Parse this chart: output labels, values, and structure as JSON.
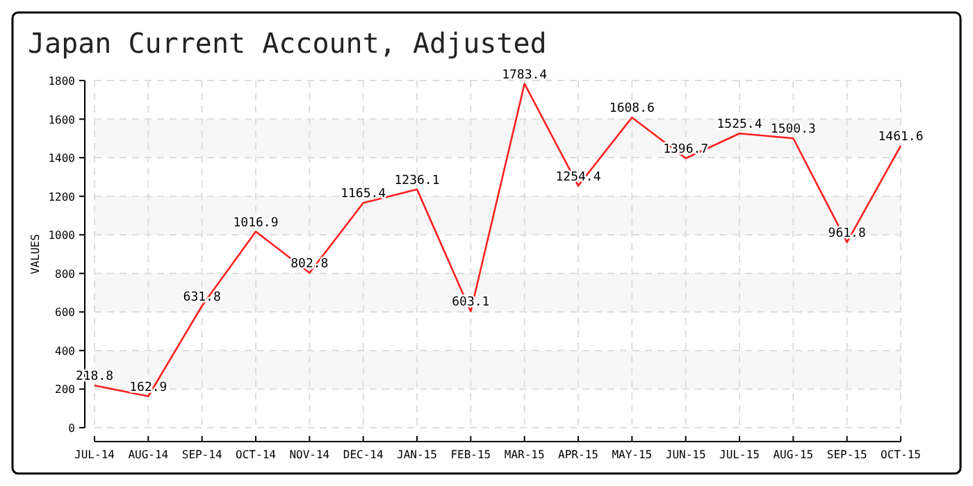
{
  "chart_data": {
    "type": "line",
    "title": "Japan Current Account, Adjusted",
    "ylabel": "VALUES",
    "categories": [
      "JUL-14",
      "AUG-14",
      "SEP-14",
      "OCT-14",
      "NOV-14",
      "DEC-14",
      "JAN-15",
      "FEB-15",
      "MAR-15",
      "APR-15",
      "MAY-15",
      "JUN-15",
      "JUL-15",
      "AUG-15",
      "SEP-15",
      "OCT-15"
    ],
    "series": [
      {
        "color": "#ff2020",
        "values": [
          218.8,
          162.9,
          631.8,
          1016.9,
          802.8,
          1165.4,
          1236.1,
          603.1,
          1783.4,
          1254.4,
          1608.6,
          1396.7,
          1525.4,
          1500.3,
          961.8,
          1461.6
        ]
      }
    ],
    "ylim": [
      0,
      1800
    ],
    "yticks": [
      0,
      200,
      400,
      600,
      800,
      1000,
      1200,
      1400,
      1600,
      1800
    ],
    "grid": true,
    "data_labels": true,
    "marker": "none",
    "line_style": "solid"
  }
}
